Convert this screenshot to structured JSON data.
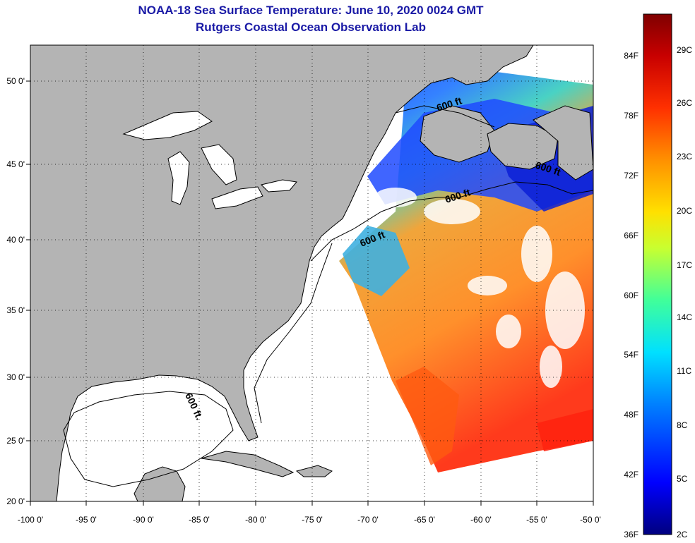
{
  "header": {
    "title": "NOAA-18 Sea Surface Temperature:  June 10, 2020 0024 GMT",
    "subtitle": "Rutgers Coastal Ocean Observation Lab"
  },
  "map": {
    "lon_labels": [
      "-100 0'",
      "-95 0'",
      "-90 0'",
      "-85 0'",
      "-80 0'",
      "-75 0'",
      "-70 0'",
      "-65 0'",
      "-60 0'",
      "-55 0'",
      "-50 0'"
    ],
    "lat_labels": [
      "20 0'",
      "25 0'",
      "30 0'",
      "35 0'",
      "40 0'",
      "45 0'",
      "50 0'"
    ],
    "isobath_labels": [
      "600 ft",
      "600 ft",
      "600 ft",
      "600 ft",
      "600 ft."
    ]
  },
  "colorbar": {
    "f_labels": [
      "36F",
      "42F",
      "48F",
      "54F",
      "60F",
      "66F",
      "72F",
      "78F",
      "84F"
    ],
    "c_labels": [
      "2C",
      "5C",
      "8C",
      "11C",
      "14C",
      "17C",
      "20C",
      "23C",
      "26C",
      "29C"
    ]
  },
  "colors": {
    "title": "#1a1aa6",
    "land": "#b4b4b4",
    "ocean": "#ffffff",
    "gradient": [
      "#00007f",
      "#0000ff",
      "#0080ff",
      "#00e0ff",
      "#40ff9a",
      "#c8ff30",
      "#ffe000",
      "#ff9000",
      "#ff3000",
      "#c80000",
      "#7f0000"
    ]
  }
}
